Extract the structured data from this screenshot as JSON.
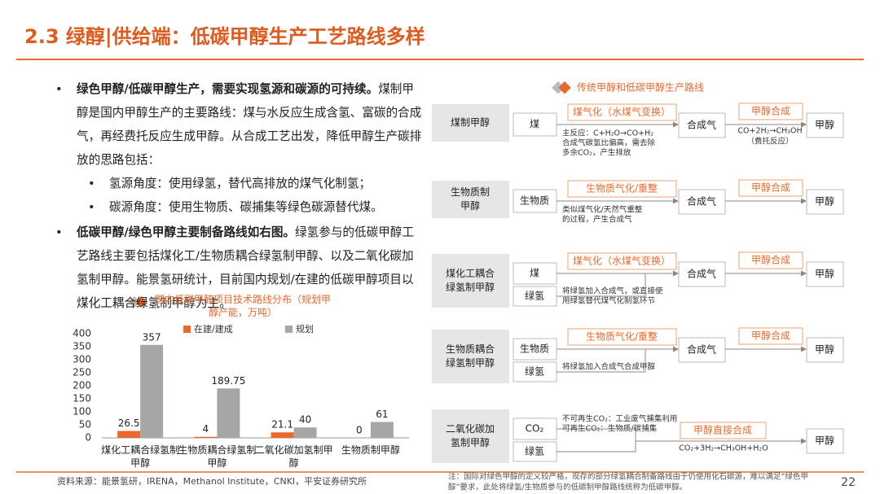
{
  "header": {
    "title": "2.3 绿醇|供给端：低碳甲醇生产工艺路线多样"
  },
  "bullets": [
    {
      "bold": "绿色甲醇/低碳甲醇生产，需要实现氢源和碳源的可持续。",
      "text": "煤制甲醇是国内甲醇生产的主要路线：煤与水反应生成含氢、富碳的合成气，再经费托反应生成甲醇。从合成工艺出发，降低甲醇生产碳排放的思路包括：",
      "subs": [
        "氢源角度：使用绿氢，替代高排放的煤气化制氢；",
        "碳源角度：使用生物质、碳捕集等绿色碳源替代煤。"
      ]
    },
    {
      "bold": "低碳甲醇/绿色甲醇主要制备路线如右图。",
      "text": "绿氢参与的低碳甲醇工艺路线主要包括煤化工/生物质耦合绿氢制甲醇、以及二氧化碳加氢制甲醇。能景氢研统计，目前国内规划/在建的低碳甲醇项目以煤化工耦合绿氢制甲醇为主。",
      "subs": []
    }
  ],
  "chart_data": {
    "type": "bar",
    "title": "国内低碳甲醇项目技术路线分布（规划甲醇产能，万吨）",
    "categories": [
      "煤化工耦合绿氢制甲醇",
      "生物质耦合绿氢制甲醇",
      "二氧化碳加氢制甲醇",
      "生物质制甲醇"
    ],
    "series": [
      {
        "name": "在建/建成",
        "color": "#e9692c",
        "values": [
          26.5,
          4,
          21.1,
          0
        ]
      },
      {
        "name": "规划",
        "color": "#a6a6a6",
        "values": [
          357,
          189.75,
          40,
          61
        ]
      }
    ],
    "ylim": [
      0,
      400
    ],
    "yticks": [
      0,
      50,
      100,
      150,
      200,
      250,
      300,
      350,
      400
    ],
    "legend": "top"
  },
  "diagram": {
    "title": "传统甲醇和低碳甲醇生产路线",
    "rows": [
      {
        "route": [
          "煤制甲醇"
        ],
        "inputs": [
          "煤"
        ],
        "process": "煤气化（水煤气变换）",
        "note": [
          "主反应：C+H₂O→CO+H₂",
          "合成气碳氢比偏高，需去除",
          "多余CO₂，产生排放"
        ],
        "intermediate": "合成气",
        "synthesis": "甲醇合成",
        "synthesis_note": [
          "CO+2H₂→CH₃OH",
          "（费托反应）"
        ],
        "product": "甲醇"
      },
      {
        "route": [
          "生物质制",
          "甲醇"
        ],
        "inputs": [
          "生物质"
        ],
        "process": "生物质气化/重整",
        "note": [
          "类似煤气化/天然气重整",
          "的过程，产生合成气"
        ],
        "intermediate": "合成气",
        "synthesis": "甲醇合成",
        "synthesis_note": [],
        "product": "甲醇"
      },
      {
        "route": [
          "煤化工耦合",
          "绿氢制甲醇"
        ],
        "inputs": [
          "煤",
          "绿氢"
        ],
        "process": "煤气化（水煤气变换）",
        "note": [
          "将绿氢加入合成气，或直接使",
          "用绿氢替代煤气化制氢环节"
        ],
        "intermediate": "合成气",
        "synthesis": "甲醇合成",
        "synthesis_note": [],
        "product": "甲醇"
      },
      {
        "route": [
          "生物质耦合",
          "绿氢制甲醇"
        ],
        "inputs": [
          "生物质",
          "绿氢"
        ],
        "process": "生物质气化/重整",
        "note": [
          "将绿氢加入合成气合成甲醇"
        ],
        "intermediate": "合成气",
        "synthesis": "甲醇合成",
        "synthesis_note": [],
        "product": "甲醇"
      },
      {
        "route": [
          "二氧化碳加",
          "氢制甲醇"
        ],
        "inputs": [
          "CO₂",
          "绿氢"
        ],
        "note": [
          "不可再生CO₂：工业废气捕集利用",
          "可再生CO₂：生物质/碳捕集"
        ],
        "synthesis": "甲醇直接合成",
        "synthesis_note": [
          "CO₂+3H₂→CH₃OH+H₂O"
        ],
        "product": "甲醇"
      }
    ]
  },
  "footer": {
    "source": "资料来源：能景氢研，IRENA，Methanol Institute，CNKI，平安证券研究所",
    "note": [
      "注：国际对绿色甲醇的定义较严格，现存的部分绿氢耦合制备路线由于仍使用化石碳源，难以满足“绿色甲",
      "醇”要求，此处将绿氢/生物质参与的低碳制甲醇路线统称为低碳甲醇。"
    ],
    "page": "22"
  }
}
